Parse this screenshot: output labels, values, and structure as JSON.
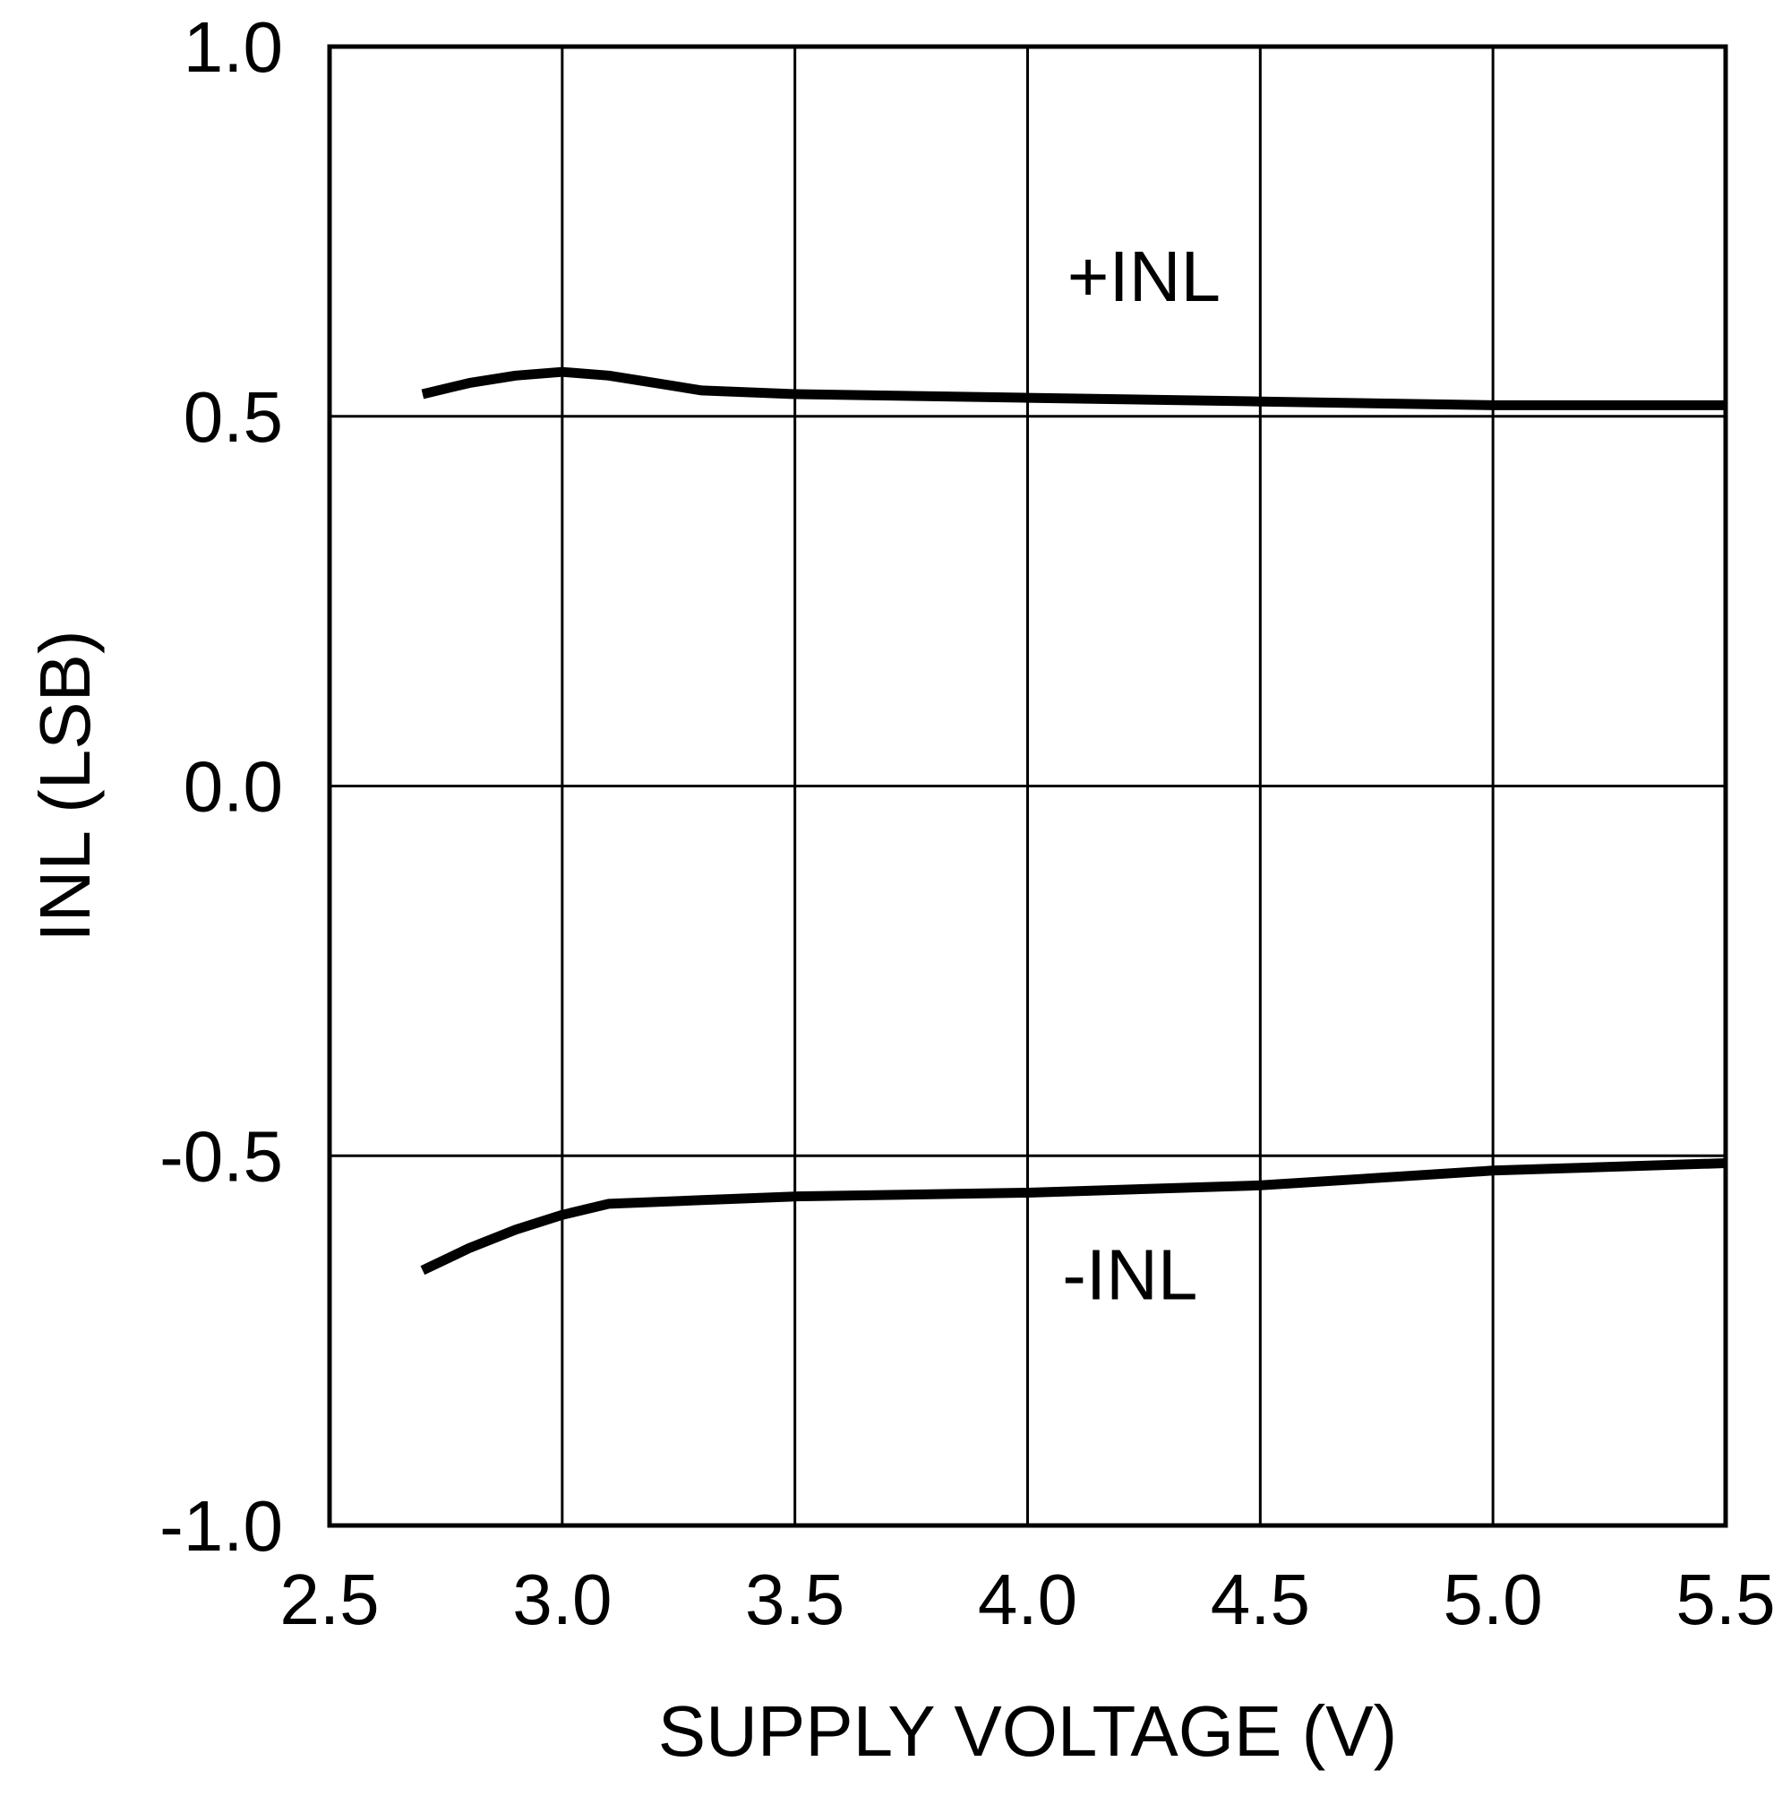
{
  "chart_data": {
    "type": "line",
    "title": "",
    "xlabel": "SUPPLY VOLTAGE (V)",
    "ylabel": "INL (LSB)",
    "xlim": [
      2.5,
      5.5
    ],
    "ylim": [
      -1.0,
      1.0
    ],
    "xticks": [
      "2.5",
      "3.0",
      "3.5",
      "4.0",
      "4.5",
      "5.0",
      "5.5"
    ],
    "yticks": [
      "1.0",
      "0.5",
      "0.0",
      "-0.5",
      "-1.0"
    ],
    "grid": true,
    "series": [
      {
        "name": "+INL",
        "x": [
          2.7,
          2.8,
          2.9,
          3.0,
          3.1,
          3.2,
          3.3,
          3.5,
          4.0,
          4.5,
          5.0,
          5.5
        ],
        "y": [
          0.53,
          0.545,
          0.555,
          0.56,
          0.555,
          0.545,
          0.535,
          0.53,
          0.525,
          0.52,
          0.515,
          0.515
        ]
      },
      {
        "name": "-INL",
        "x": [
          2.7,
          2.8,
          2.9,
          3.0,
          3.1,
          3.3,
          3.5,
          4.0,
          4.5,
          5.0,
          5.5
        ],
        "y": [
          -0.655,
          -0.625,
          -0.6,
          -0.58,
          -0.565,
          -0.56,
          -0.555,
          -0.55,
          -0.54,
          -0.52,
          -0.51
        ]
      }
    ],
    "annotations": [
      {
        "text": "+INL",
        "x": 4.25,
        "y": 0.69
      },
      {
        "text": "-INL",
        "x": 4.22,
        "y": -0.66
      }
    ]
  }
}
